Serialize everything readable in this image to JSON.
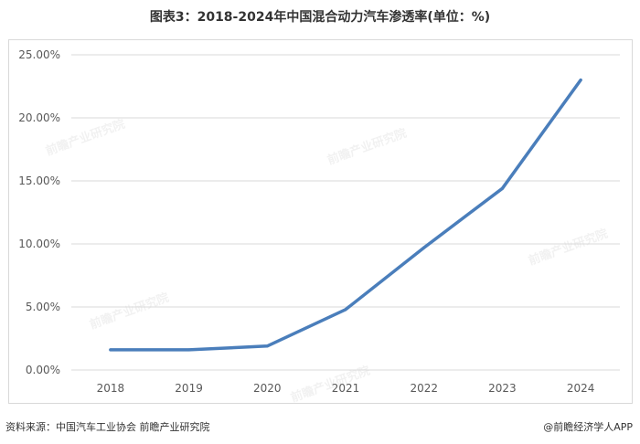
{
  "title": "图表3：2018-2024年中国混合动力汽车渗透率(单位：%)",
  "source_text": "资料来源：中国汽车工业协会 前瞻产业研究院",
  "brand_text": "@前瞻经济学人APP",
  "watermark_text": "前瞻产业研究院",
  "colors": {
    "line": "#4a7ebb",
    "grid": "#d9d9d9",
    "axis_text": "#595959"
  },
  "chart_data": {
    "type": "line",
    "title": "图表3：2018-2024年中国混合动力汽车渗透率(单位：%)",
    "xlabel": "",
    "ylabel": "",
    "categories": [
      "2018",
      "2019",
      "2020",
      "2021",
      "2022",
      "2023",
      "2024"
    ],
    "series": [
      {
        "values": [
          1.6,
          1.6,
          1.9,
          4.8,
          9.7,
          14.4,
          23.0
        ]
      }
    ],
    "ylim": [
      0,
      25
    ],
    "yticks": [
      "0.00%",
      "5.00%",
      "10.00%",
      "15.00%",
      "20.00%",
      "25.00%"
    ],
    "grid": true,
    "legend": "none"
  }
}
